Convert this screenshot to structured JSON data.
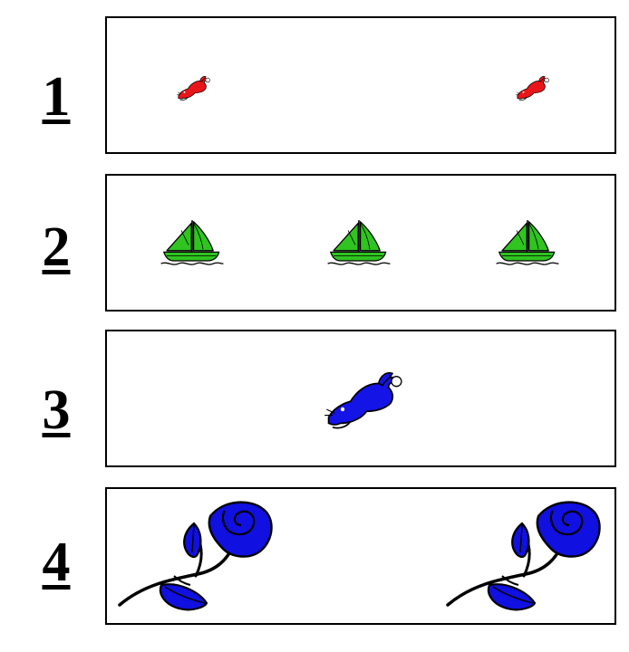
{
  "rows": [
    {
      "number": "1",
      "item": "rabbit",
      "color": "#e8161b",
      "count": 2
    },
    {
      "number": "2",
      "item": "sailboat",
      "color": "#2fc41f",
      "count": 3
    },
    {
      "number": "3",
      "item": "rabbit",
      "color": "#1414e6",
      "count": 1
    },
    {
      "number": "4",
      "item": "rose",
      "color": "#1010e0",
      "count": 2
    }
  ]
}
